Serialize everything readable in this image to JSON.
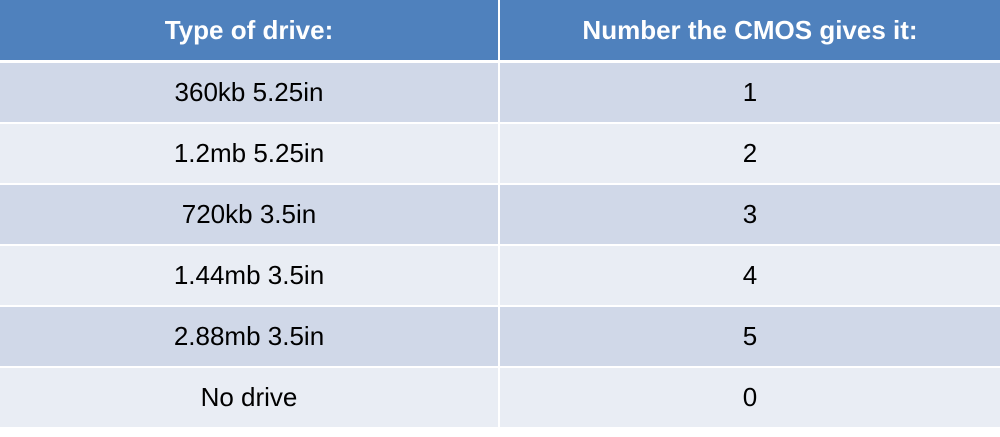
{
  "table": {
    "headers": [
      "Type of drive:",
      "Number the CMOS gives it:"
    ],
    "rows": [
      [
        "360kb 5.25in",
        "1"
      ],
      [
        "1.2mb 5.25in",
        "2"
      ],
      [
        "720kb 3.5in",
        "3"
      ],
      [
        "1.44mb 3.5in",
        "4"
      ],
      [
        "2.88mb 3.5in",
        "5"
      ],
      [
        "No drive",
        "0"
      ]
    ]
  },
  "colors": {
    "header_bg": "#4f81bd",
    "row_dark": "#d0d8e8",
    "row_light": "#e9edf4",
    "header_text": "#ffffff"
  }
}
